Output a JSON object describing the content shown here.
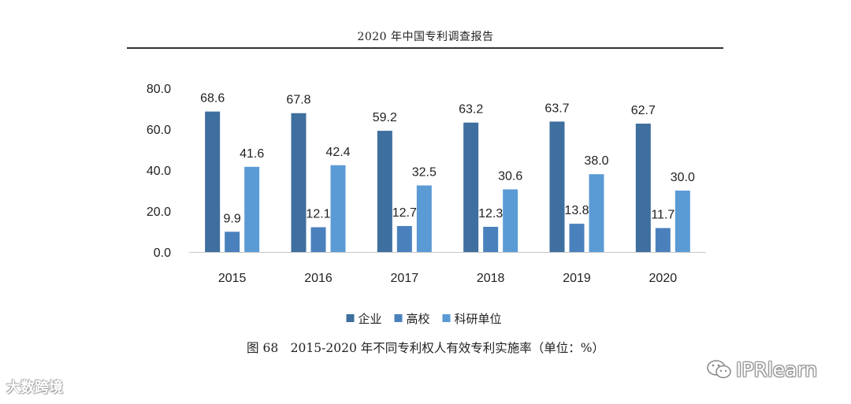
{
  "header": {
    "title": "2020 年中国专利调查报告"
  },
  "chart_data": {
    "type": "bar",
    "categories": [
      "2015",
      "2016",
      "2017",
      "2018",
      "2019",
      "2020"
    ],
    "series": [
      {
        "name": "企业",
        "color": "#3e6f9e",
        "values": [
          68.6,
          67.8,
          59.2,
          63.2,
          63.7,
          62.7
        ]
      },
      {
        "name": "高校",
        "color": "#4a81bd",
        "values": [
          9.9,
          12.1,
          12.7,
          12.3,
          13.8,
          11.7
        ]
      },
      {
        "name": "科研单位",
        "color": "#5b9bd5",
        "values": [
          41.6,
          42.4,
          32.5,
          30.6,
          38.0,
          30.0
        ]
      }
    ],
    "ylim": [
      0,
      80
    ],
    "yticks": [
      "0.0",
      "20.0",
      "40.0",
      "60.0",
      "80.0"
    ],
    "title": "图 68　2015-2020 年不同专利权人有效专利实施率（单位：%）",
    "xlabel": "",
    "ylabel": "",
    "legend_position": "bottom",
    "grid": false
  },
  "caption": "图 68　2015-2020 年不同专利权人有效专利实施率（单位：%）",
  "watermarks": {
    "left": "大数跨境",
    "right": "IPRlearn"
  }
}
